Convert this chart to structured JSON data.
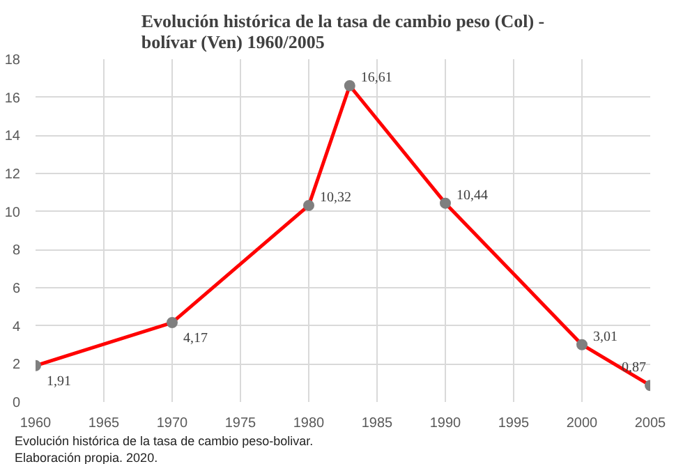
{
  "chart_data": {
    "type": "line",
    "title": "Evolución histórica de la tasa de cambio peso (Col) -\nbolívar (Ven) 1960/2005",
    "x": [
      1960,
      1970,
      1980,
      1983,
      1990,
      2000,
      2005
    ],
    "series": [
      {
        "color": "#ff0000",
        "values": [
          1.91,
          4.17,
          10.32,
          16.61,
          10.44,
          3.01,
          0.87
        ],
        "value_labels": [
          "1,91",
          "4,17",
          "10,32",
          "16,61",
          "10,44",
          "3,01",
          "0,87"
        ]
      }
    ],
    "xlim": [
      1960,
      2005
    ],
    "xticks": [
      1960,
      1965,
      1970,
      1975,
      1980,
      1985,
      1990,
      1995,
      2000,
      2005
    ],
    "ylim": [
      0,
      18
    ],
    "yticks": [
      0,
      2,
      4,
      6,
      8,
      10,
      12,
      14,
      16,
      18
    ],
    "grid": true,
    "marker": "circle",
    "annotations": [
      "Evolución histórica de la tasa de cambio peso-bolivar.",
      "Elaboración propia. 2020."
    ]
  }
}
